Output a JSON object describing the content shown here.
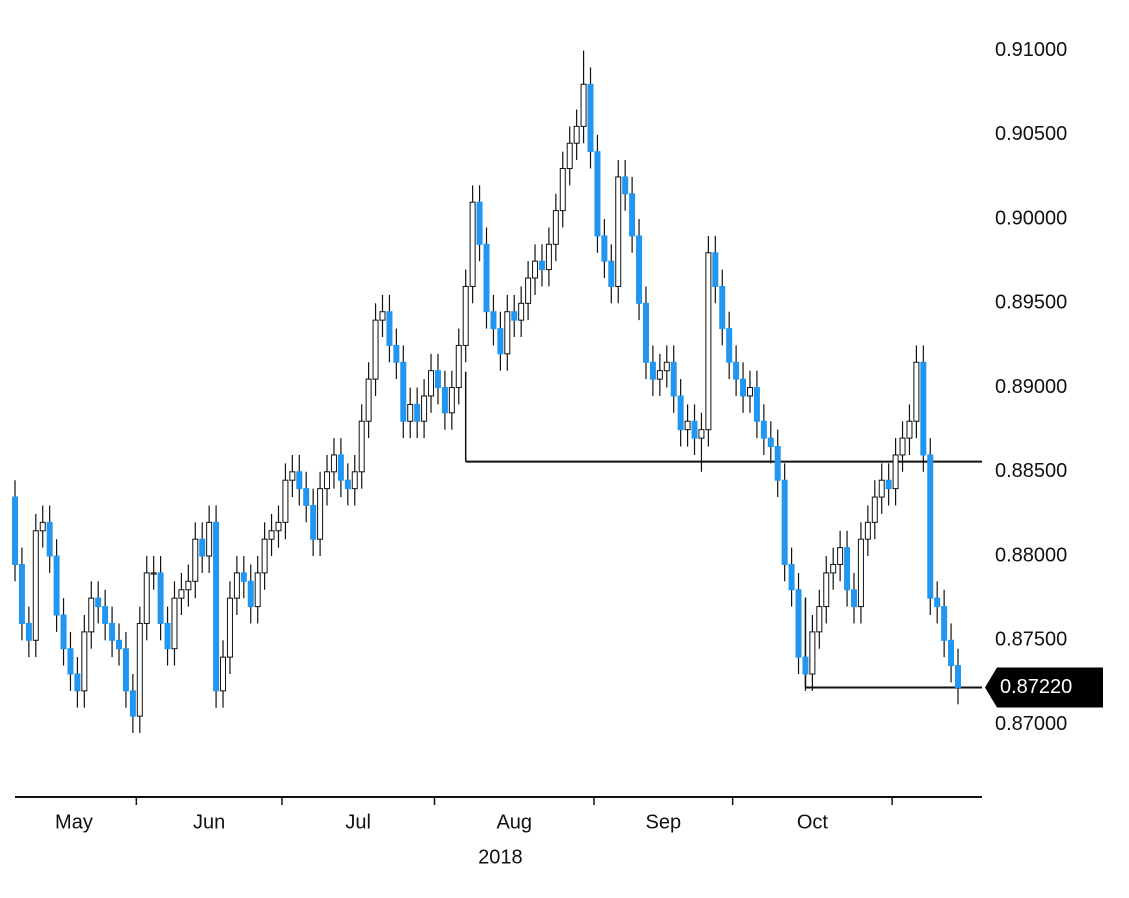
{
  "chart_data": {
    "type": "candlestick",
    "ylim": [
      0.8657,
      0.913
    ],
    "yticks": [
      {
        "value": 0.87,
        "label": "0.87000"
      },
      {
        "value": 0.875,
        "label": "0.87500"
      },
      {
        "value": 0.88,
        "label": "0.88000"
      },
      {
        "value": 0.885,
        "label": "0.88500"
      },
      {
        "value": 0.89,
        "label": "0.89000"
      },
      {
        "value": 0.895,
        "label": "0.89500"
      },
      {
        "value": 0.9,
        "label": "0.90000"
      },
      {
        "value": 0.905,
        "label": "0.90500"
      },
      {
        "value": 0.91,
        "label": "0.91000"
      }
    ],
    "xticks": [
      17.5,
      38.5,
      60.5,
      83.5,
      103.5,
      126.5
    ],
    "xtick_labels": [
      {
        "value": 8.5,
        "label": "May"
      },
      {
        "value": 28,
        "label": "Jun"
      },
      {
        "value": 49.5,
        "label": "Jul"
      },
      {
        "value": 72,
        "label": "Aug"
      },
      {
        "value": 93.5,
        "label": "Sep"
      },
      {
        "value": 115,
        "label": "Oct"
      }
    ],
    "year_label": {
      "value": 70,
      "label": "2018"
    },
    "up_color": "#ffffff",
    "down_color": "#2196f3",
    "levels": [
      {
        "value": 0.8856,
        "start": 65
      },
      {
        "value": 0.8722,
        "start": 114
      }
    ],
    "last_price": {
      "value": 0.8722,
      "label": "0.87220"
    },
    "open": [
      0.8835,
      0.8795,
      0.876,
      0.875,
      0.8815,
      0.882,
      0.88,
      0.8765,
      0.8745,
      0.873,
      0.872,
      0.8755,
      0.8775,
      0.877,
      0.876,
      0.875,
      0.8745,
      0.872,
      0.8705,
      0.876,
      0.879,
      0.879,
      0.876,
      0.8745,
      0.8775,
      0.878,
      0.8785,
      0.881,
      0.88,
      0.882,
      0.872,
      0.874,
      0.8775,
      0.879,
      0.8785,
      0.877,
      0.879,
      0.881,
      0.8815,
      0.882,
      0.8845,
      0.885,
      0.884,
      0.883,
      0.881,
      0.884,
      0.885,
      0.886,
      0.8845,
      0.884,
      0.885,
      0.888,
      0.8905,
      0.894,
      0.8945,
      0.8925,
      0.8915,
      0.888,
      0.889,
      0.888,
      0.8895,
      0.891,
      0.89,
      0.8885,
      0.89,
      0.8925,
      0.896,
      0.901,
      0.8985,
      0.8945,
      0.8935,
      0.892,
      0.8945,
      0.894,
      0.895,
      0.8965,
      0.8975,
      0.897,
      0.8985,
      0.9005,
      0.903,
      0.9045,
      0.9055,
      0.908,
      0.904,
      0.899,
      0.8975,
      0.896,
      0.9025,
      0.9015,
      0.899,
      0.895,
      0.8915,
      0.8905,
      0.891,
      0.8915,
      0.8895,
      0.8875,
      0.888,
      0.887,
      0.8875,
      0.898,
      0.896,
      0.8935,
      0.8915,
      0.8905,
      0.8895,
      0.89,
      0.888,
      0.887,
      0.8865,
      0.8845,
      0.8795,
      0.878,
      0.874,
      0.873,
      0.8755,
      0.877,
      0.879,
      0.8795,
      0.8805,
      0.878,
      0.877,
      0.881,
      0.882,
      0.8835,
      0.8845,
      0.884,
      0.886,
      0.887,
      0.888,
      0.8915,
      0.886,
      0.8775,
      0.877,
      0.875,
      0.8735
    ],
    "high": [
      0.8845,
      0.8805,
      0.877,
      0.8825,
      0.883,
      0.883,
      0.881,
      0.8775,
      0.8755,
      0.874,
      0.8765,
      0.8785,
      0.8785,
      0.878,
      0.877,
      0.876,
      0.8755,
      0.873,
      0.877,
      0.88,
      0.88,
      0.88,
      0.877,
      0.8785,
      0.879,
      0.8795,
      0.882,
      0.882,
      0.883,
      0.883,
      0.875,
      0.8785,
      0.88,
      0.88,
      0.8795,
      0.88,
      0.882,
      0.8825,
      0.883,
      0.8855,
      0.886,
      0.886,
      0.885,
      0.884,
      0.885,
      0.886,
      0.887,
      0.887,
      0.8855,
      0.886,
      0.889,
      0.8915,
      0.895,
      0.8955,
      0.8955,
      0.8935,
      0.8925,
      0.89,
      0.89,
      0.8905,
      0.892,
      0.892,
      0.891,
      0.891,
      0.8935,
      0.897,
      0.902,
      0.902,
      0.8995,
      0.8955,
      0.8945,
      0.8955,
      0.8955,
      0.896,
      0.8975,
      0.8985,
      0.8985,
      0.8995,
      0.9015,
      0.904,
      0.9055,
      0.9065,
      0.91,
      0.909,
      0.905,
      0.9,
      0.8985,
      0.9035,
      0.9035,
      0.9025,
      0.9,
      0.896,
      0.8925,
      0.892,
      0.8925,
      0.8925,
      0.8905,
      0.889,
      0.889,
      0.8885,
      0.899,
      0.899,
      0.897,
      0.8945,
      0.8925,
      0.8915,
      0.891,
      0.891,
      0.889,
      0.888,
      0.8875,
      0.8855,
      0.8805,
      0.879,
      0.875,
      0.8765,
      0.878,
      0.88,
      0.8805,
      0.8815,
      0.8815,
      0.879,
      0.882,
      0.883,
      0.8845,
      0.8855,
      0.8855,
      0.887,
      0.888,
      0.889,
      0.8925,
      0.8925,
      0.887,
      0.8785,
      0.878,
      0.876,
      0.8745
    ],
    "low": [
      0.8785,
      0.875,
      0.874,
      0.874,
      0.8805,
      0.879,
      0.8755,
      0.8735,
      0.872,
      0.871,
      0.871,
      0.8745,
      0.876,
      0.875,
      0.874,
      0.8735,
      0.871,
      0.8695,
      0.8695,
      0.875,
      0.878,
      0.875,
      0.8735,
      0.8735,
      0.8765,
      0.877,
      0.8775,
      0.879,
      0.879,
      0.871,
      0.871,
      0.873,
      0.8765,
      0.8775,
      0.876,
      0.876,
      0.878,
      0.88,
      0.8805,
      0.881,
      0.8835,
      0.883,
      0.882,
      0.88,
      0.88,
      0.883,
      0.884,
      0.8835,
      0.883,
      0.883,
      0.884,
      0.887,
      0.8895,
      0.893,
      0.8915,
      0.8905,
      0.887,
      0.887,
      0.887,
      0.887,
      0.8885,
      0.889,
      0.8875,
      0.8875,
      0.889,
      0.8915,
      0.895,
      0.8975,
      0.8935,
      0.8925,
      0.891,
      0.891,
      0.893,
      0.893,
      0.894,
      0.8955,
      0.896,
      0.896,
      0.8975,
      0.8995,
      0.902,
      0.9035,
      0.9045,
      0.903,
      0.898,
      0.8965,
      0.895,
      0.895,
      0.9005,
      0.898,
      0.894,
      0.8905,
      0.8895,
      0.8895,
      0.89,
      0.8885,
      0.8865,
      0.8865,
      0.886,
      0.885,
      0.8865,
      0.895,
      0.8925,
      0.8905,
      0.8895,
      0.8885,
      0.8885,
      0.887,
      0.886,
      0.8855,
      0.8835,
      0.8785,
      0.877,
      0.873,
      0.872,
      0.872,
      0.8745,
      0.876,
      0.878,
      0.8785,
      0.877,
      0.876,
      0.876,
      0.88,
      0.881,
      0.8825,
      0.883,
      0.883,
      0.885,
      0.886,
      0.887,
      0.885,
      0.8765,
      0.876,
      0.874,
      0.8725,
      0.8712
    ],
    "close": [
      0.8795,
      0.876,
      0.875,
      0.8815,
      0.882,
      0.88,
      0.8765,
      0.8745,
      0.873,
      0.872,
      0.8755,
      0.8775,
      0.877,
      0.876,
      0.875,
      0.8745,
      0.872,
      0.8705,
      0.876,
      0.879,
      0.879,
      0.876,
      0.8745,
      0.8775,
      0.878,
      0.8785,
      0.881,
      0.88,
      0.882,
      0.872,
      0.874,
      0.8775,
      0.879,
      0.8785,
      0.877,
      0.879,
      0.881,
      0.8815,
      0.882,
      0.8845,
      0.885,
      0.884,
      0.883,
      0.881,
      0.884,
      0.885,
      0.886,
      0.8845,
      0.884,
      0.885,
      0.888,
      0.8905,
      0.894,
      0.8945,
      0.8925,
      0.8915,
      0.888,
      0.889,
      0.888,
      0.8895,
      0.891,
      0.89,
      0.8885,
      0.89,
      0.8925,
      0.896,
      0.901,
      0.8985,
      0.8945,
      0.8935,
      0.892,
      0.8945,
      0.894,
      0.895,
      0.8965,
      0.8975,
      0.897,
      0.8985,
      0.9005,
      0.903,
      0.9045,
      0.9055,
      0.908,
      0.904,
      0.899,
      0.8975,
      0.896,
      0.9025,
      0.9015,
      0.899,
      0.895,
      0.8915,
      0.8905,
      0.891,
      0.8915,
      0.8895,
      0.8875,
      0.888,
      0.887,
      0.8875,
      0.898,
      0.896,
      0.8935,
      0.8915,
      0.8905,
      0.8895,
      0.89,
      0.888,
      0.887,
      0.8865,
      0.8845,
      0.8795,
      0.878,
      0.874,
      0.873,
      0.8755,
      0.877,
      0.879,
      0.8795,
      0.8805,
      0.878,
      0.877,
      0.881,
      0.882,
      0.8835,
      0.8845,
      0.884,
      0.886,
      0.887,
      0.888,
      0.8915,
      0.886,
      0.8775,
      0.877,
      0.875,
      0.8735,
      0.8722
    ]
  }
}
